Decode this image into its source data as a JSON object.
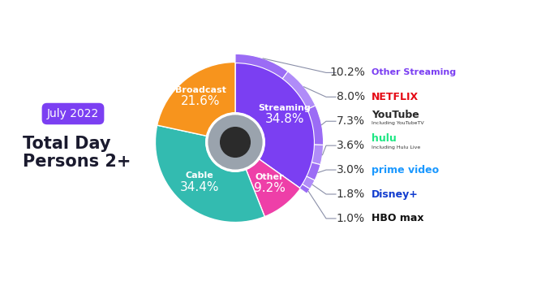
{
  "chart_data": {
    "type": "donut",
    "title": "July 2022",
    "subtitle": "Total Day\nPersons 2+",
    "categories": [
      "Streaming",
      "Other",
      "Cable",
      "Broadcast"
    ],
    "values": [
      34.8,
      9.2,
      34.4,
      21.6
    ],
    "value_labels": [
      "34.8%",
      "9.2%",
      "34.4%",
      "21.6%"
    ],
    "colors": [
      "#7b3ff2",
      "#ee3fa8",
      "#33bbb0",
      "#f7941d"
    ],
    "data_labels": true,
    "breakdown": {
      "name": "Streaming",
      "categories": [
        "Other Streaming",
        "NETFLIX",
        "YouTube",
        "hulu",
        "prime video",
        "Disney+",
        "HBO max"
      ],
      "notes": [
        null,
        null,
        "Including YouTubeTV",
        "Including Hulu Live",
        null,
        null,
        null
      ],
      "values": [
        10.2,
        8.0,
        7.3,
        3.6,
        3.0,
        1.8,
        1.0
      ],
      "value_labels": [
        "10.2%",
        "8.0%",
        "7.3%",
        "3.6%",
        "3.0%",
        "1.8%",
        "1.0%"
      ],
      "colors": [
        "#9b6cf5",
        "#b08cf8",
        "#9b6cf5",
        "#b08cf8",
        "#9b6cf5",
        "#b08cf8",
        "#9b6cf5"
      ],
      "label_colors": [
        "#7b3ff2",
        "#e50914",
        "#282828",
        "#1ce783",
        "#1a98ff",
        "#113ccf",
        "#111111"
      ]
    }
  }
}
